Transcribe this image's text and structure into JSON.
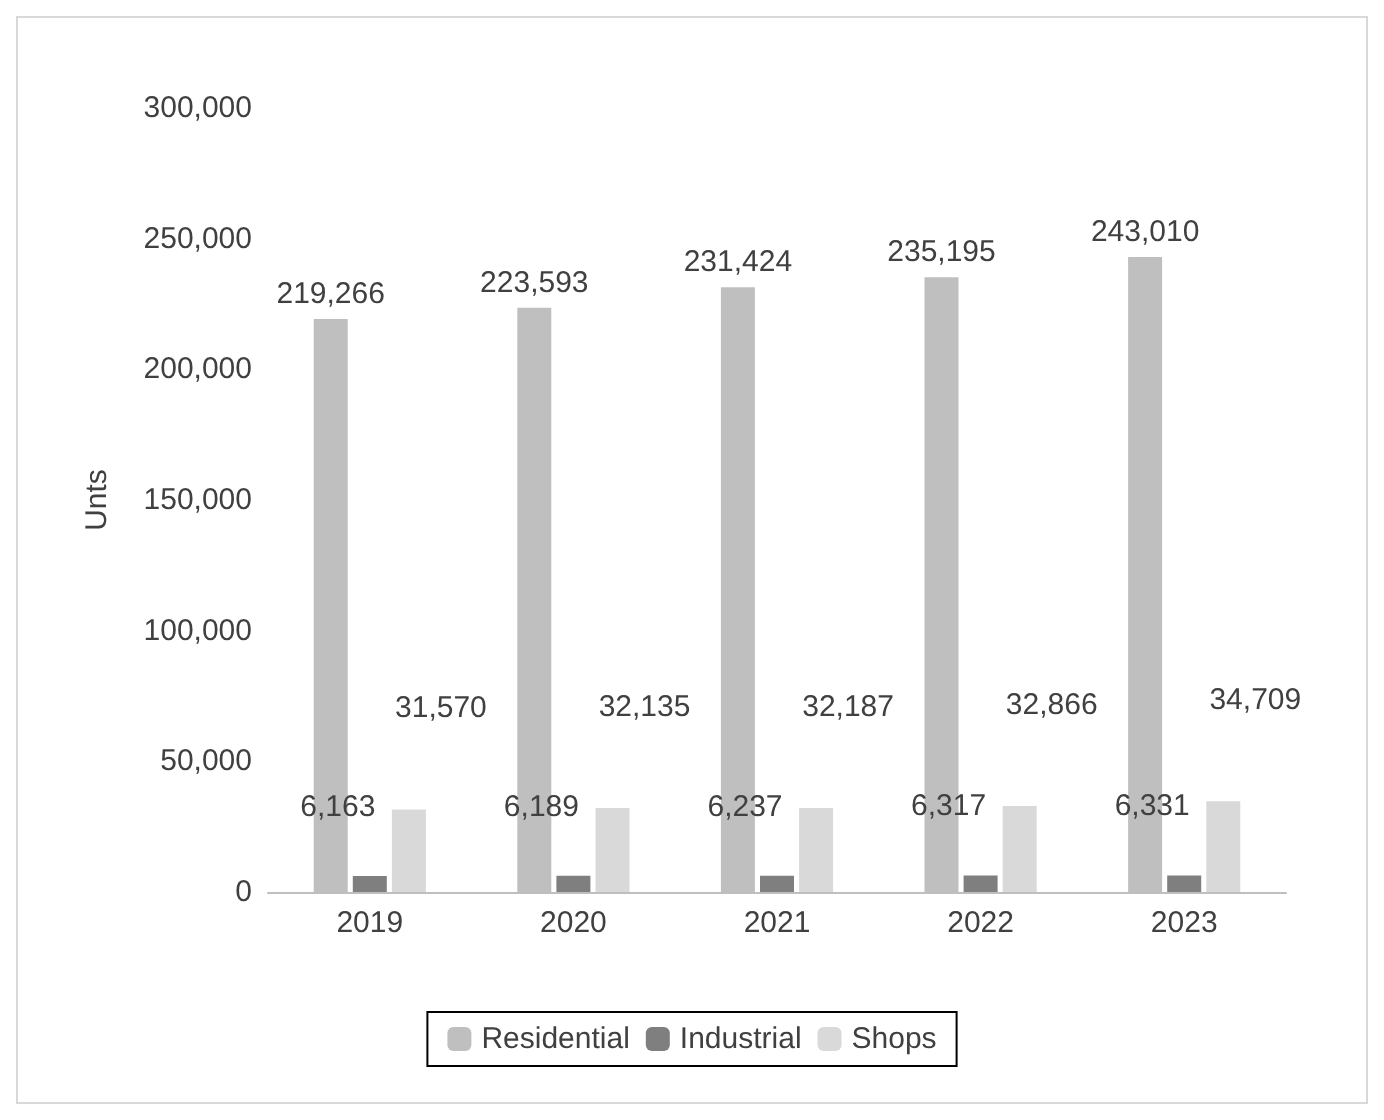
{
  "chart_data": {
    "type": "bar",
    "ylabel": "Unts",
    "categories": [
      "2019",
      "2020",
      "2021",
      "2022",
      "2023"
    ],
    "series": [
      {
        "name": "Residential",
        "color": "#bfbfbf",
        "values": [
          219266,
          223593,
          231424,
          235195,
          243010
        ],
        "value_labels": [
          "219,266",
          "223,593",
          "231,424",
          "235,195",
          "243,010"
        ]
      },
      {
        "name": "Industrial",
        "color": "#7f7f7f",
        "values": [
          6163,
          6189,
          6237,
          6317,
          6331
        ],
        "value_labels": [
          "6,163",
          "6,189",
          "6,237",
          "6,317",
          "6,331"
        ]
      },
      {
        "name": "Shops",
        "color": "#d9d9d9",
        "values": [
          31570,
          32135,
          32187,
          32866,
          34709
        ],
        "value_labels": [
          "31,570",
          "32,135",
          "32,187",
          "32,866",
          "34,709"
        ]
      }
    ],
    "ylim": [
      0,
      300000
    ],
    "yticks": [
      {
        "value": 0,
        "label": "0"
      },
      {
        "value": 50000,
        "label": "50,000"
      },
      {
        "value": 100000,
        "label": "100,000"
      },
      {
        "value": 150000,
        "label": "150,000"
      },
      {
        "value": 200000,
        "label": "200,000"
      },
      {
        "value": 250000,
        "label": "250,000"
      },
      {
        "value": 300000,
        "label": "300,000"
      }
    ],
    "grid": false,
    "legend": "bottom"
  }
}
